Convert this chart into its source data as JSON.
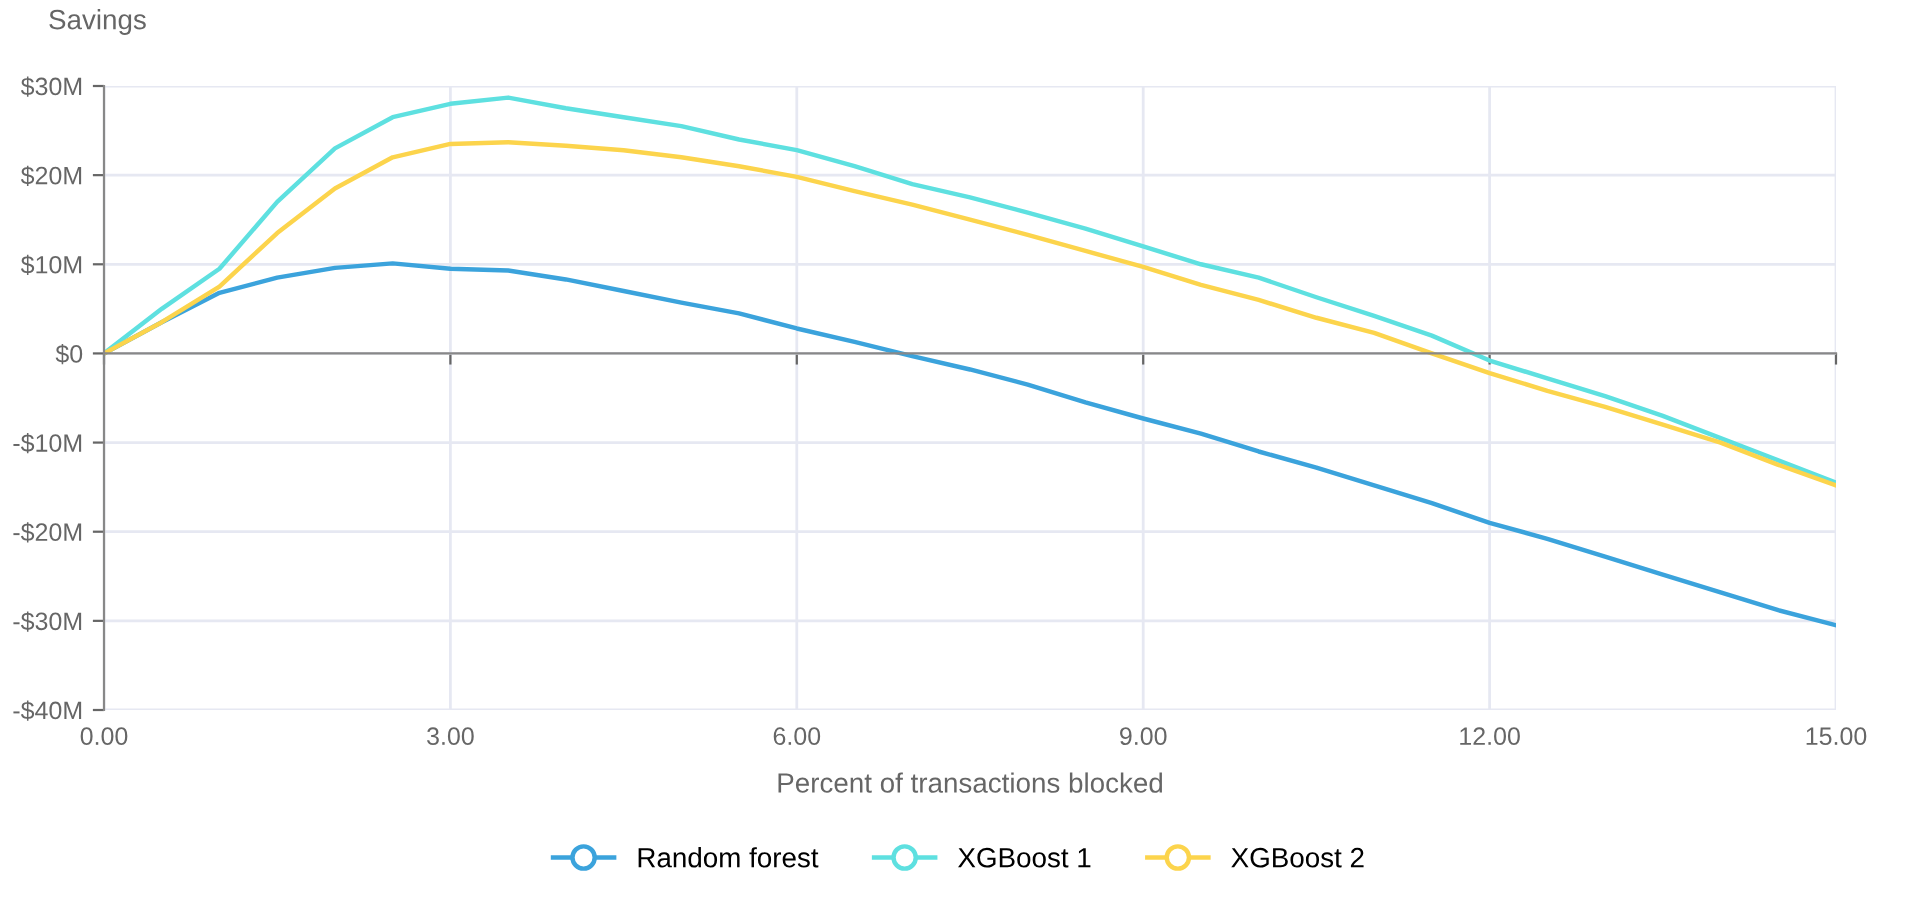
{
  "chart_data": {
    "type": "line",
    "xlabel": "Percent of transactions blocked",
    "ylabel": "Savings",
    "x": [
      0,
      0.5,
      1.0,
      1.5,
      2.0,
      2.5,
      3.0,
      3.5,
      4.0,
      4.5,
      5.0,
      5.5,
      6.0,
      6.5,
      7.0,
      7.5,
      8.0,
      8.5,
      9.0,
      9.5,
      10.0,
      10.5,
      11.0,
      11.5,
      12.0,
      12.5,
      13.0,
      13.5,
      14.0,
      14.5,
      15.0
    ],
    "series": [
      {
        "name": "Random forest",
        "color": "#3ba3dc",
        "values": [
          0,
          3.5,
          6.8,
          8.5,
          9.6,
          10.1,
          9.5,
          9.3,
          8.3,
          7.0,
          5.7,
          4.5,
          2.8,
          1.3,
          -0.3,
          -1.8,
          -3.5,
          -5.5,
          -7.3,
          -9.0,
          -11.0,
          -12.8,
          -14.8,
          -16.8,
          -19.0,
          -20.8,
          -22.8,
          -24.8,
          -26.8,
          -28.8,
          -30.5
        ]
      },
      {
        "name": "XGBoost 1",
        "color": "#5ee0e0",
        "values": [
          0,
          5,
          9.5,
          17,
          23,
          26.5,
          28,
          28.7,
          27.5,
          26.5,
          25.5,
          24,
          22.8,
          21,
          19,
          17.5,
          15.8,
          14,
          12,
          10,
          8.5,
          6.3,
          4.2,
          2,
          -0.8,
          -2.8,
          -4.8,
          -7,
          -9.5,
          -12,
          -14.5
        ]
      },
      {
        "name": "XGBoost 2",
        "color": "#fcd44c",
        "values": [
          0,
          3.5,
          7.5,
          13.5,
          18.5,
          22,
          23.5,
          23.7,
          23.3,
          22.8,
          22,
          21,
          19.8,
          18.2,
          16.7,
          15,
          13.3,
          11.5,
          9.7,
          7.7,
          6,
          4,
          2.3,
          0,
          -2.2,
          -4.2,
          -6,
          -8,
          -10,
          -12.5,
          -14.8
        ]
      }
    ],
    "xlim": [
      0,
      15
    ],
    "xticks": [
      {
        "value": 0,
        "label": "0.00"
      },
      {
        "value": 3,
        "label": "3.00"
      },
      {
        "value": 6,
        "label": "6.00"
      },
      {
        "value": 9,
        "label": "9.00"
      },
      {
        "value": 12,
        "label": "12.00"
      },
      {
        "value": 15,
        "label": "15.00"
      }
    ],
    "ylim": [
      -40,
      30
    ],
    "yticks": [
      {
        "value": -40,
        "label": "-$40M"
      },
      {
        "value": -30,
        "label": "-$30M"
      },
      {
        "value": -20,
        "label": "-$20M"
      },
      {
        "value": -10,
        "label": "-$10M"
      },
      {
        "value": 0,
        "label": "$0"
      },
      {
        "value": 10,
        "label": "$10M"
      },
      {
        "value": 20,
        "label": "$20M"
      },
      {
        "value": 30,
        "label": "$30M"
      }
    ],
    "grid": true,
    "legend": "bottom",
    "line_style": "solid"
  }
}
